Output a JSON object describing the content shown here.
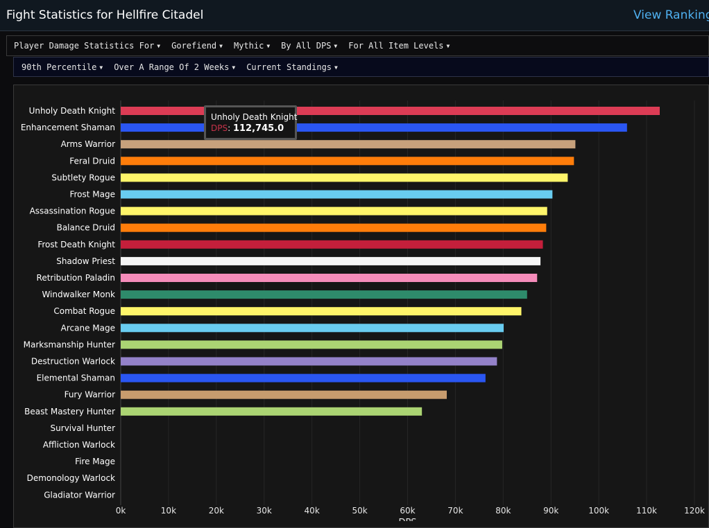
{
  "header": {
    "title": "Fight Statistics for Hellfire Citadel",
    "view_ranking": "View Ranking"
  },
  "filters_row1": [
    "Player Damage Statistics For",
    "Gorefiend",
    "Mythic",
    "By All DPS",
    "For All Item Levels"
  ],
  "filters_row2": [
    "90th Percentile",
    "Over A Range Of 2 Weeks",
    "Current Standings"
  ],
  "tooltip": {
    "name": "Unholy Death Knight",
    "label": "DPS",
    "value": "112,745.0"
  },
  "chart_data": {
    "type": "bar",
    "orientation": "horizontal",
    "xlabel": "DPS",
    "xlim": [
      0,
      120000
    ],
    "xticks": [
      "0k",
      "10k",
      "20k",
      "30k",
      "40k",
      "50k",
      "60k",
      "70k",
      "80k",
      "90k",
      "100k",
      "110k",
      "120k"
    ],
    "grid": true,
    "categories": [
      "Unholy Death Knight",
      "Enhancement Shaman",
      "Arms Warrior",
      "Feral Druid",
      "Subtlety Rogue",
      "Frost Mage",
      "Assassination Rogue",
      "Balance Druid",
      "Frost Death Knight",
      "Shadow Priest",
      "Retribution Paladin",
      "Windwalker Monk",
      "Combat Rogue",
      "Arcane Mage",
      "Marksmanship Hunter",
      "Destruction Warlock",
      "Elemental Shaman",
      "Fury Warrior",
      "Beast Mastery Hunter",
      "Survival Hunter",
      "Affliction Warlock",
      "Fire Mage",
      "Demonology Warlock",
      "Gladiator Warrior"
    ],
    "values": [
      112745,
      105900,
      95100,
      94800,
      93500,
      90300,
      89200,
      89000,
      88300,
      87800,
      87100,
      85000,
      83800,
      80100,
      79800,
      78700,
      76300,
      68200,
      63000,
      0,
      0,
      0,
      0,
      0
    ],
    "colors": [
      "#dc3c55",
      "#2a56f2",
      "#c7a17c",
      "#ff7d0a",
      "#fff56a",
      "#69ccf0",
      "#fff56a",
      "#ff7d0a",
      "#c41f3b",
      "#f5f5f5",
      "#f58cba",
      "#2e8b6b",
      "#fff56a",
      "#69ccf0",
      "#abd473",
      "#9482c9",
      "#2a56f2",
      "#c79c6e",
      "#abd473",
      "#abd473",
      "#9482c9",
      "#69ccf0",
      "#9482c9",
      "#c79c6e"
    ]
  }
}
